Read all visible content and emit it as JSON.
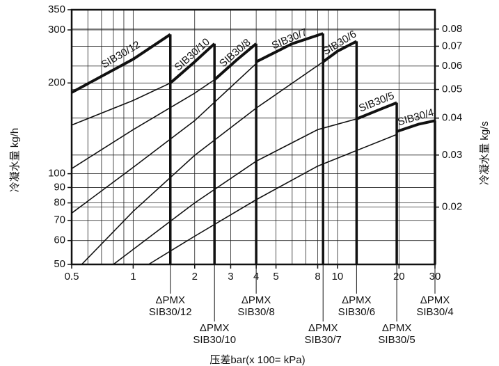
{
  "chart_data": {
    "type": "line",
    "ylabel": "冷凝水量 kg/h",
    "y2label": "冷凝水量 kg/s",
    "xlabel": "压差bar(x 100= kPa)",
    "xscale": "log",
    "yscale": "log",
    "grid": true,
    "xlim": [
      0.5,
      30
    ],
    "xticks": [
      0.5,
      1,
      2,
      3,
      4,
      5,
      8,
      10,
      20,
      30
    ],
    "xminor": [
      0.6,
      0.7,
      0.8,
      0.9,
      6,
      7,
      9
    ],
    "ylim": [
      50,
      350
    ],
    "yticks": [
      50,
      60,
      70,
      80,
      90,
      100,
      200,
      300,
      350
    ],
    "y2lim": [
      0.0128,
      0.093
    ],
    "y2ticks": [
      0.02,
      0.03,
      0.04,
      0.05,
      0.06,
      0.07,
      0.08
    ],
    "color": "#111111",
    "series": [
      {
        "name": "SIB30/12",
        "x": [],
        "values": [],
        "max_x": [
          0.5,
          1,
          1.52
        ],
        "max_values": [
          186,
          240,
          290
        ]
      },
      {
        "name": "SIB30/10",
        "x": [
          0.5,
          1,
          1.52
        ],
        "values": [
          145,
          175,
          200
        ],
        "max_x": [
          1.52,
          2,
          2.5
        ],
        "max_values": [
          200,
          235,
          270
        ]
      },
      {
        "name": "SIB30/8",
        "x": [
          0.5,
          1,
          2,
          2.5
        ],
        "values": [
          104,
          140,
          185,
          205
        ],
        "max_x": [
          2.5,
          3.2,
          4
        ],
        "max_values": [
          205,
          238,
          270
        ]
      },
      {
        "name": "SIB30/7",
        "x": [
          0.5,
          1,
          2,
          4
        ],
        "values": [
          74,
          105,
          150,
          232
        ],
        "max_x": [
          4,
          6,
          8.5
        ],
        "max_values": [
          235,
          270,
          292
        ]
      },
      {
        "name": "SIB30/6",
        "x": [
          0.56,
          1,
          2,
          4,
          8.5
        ],
        "values": [
          50,
          75,
          115,
          165,
          235
        ],
        "max_x": [
          8.5,
          10,
          12.4
        ],
        "max_values": [
          235,
          255,
          275
        ]
      },
      {
        "name": "SIB30/5",
        "x": [
          0.8,
          2,
          4,
          8,
          12.4
        ],
        "values": [
          50,
          80,
          110,
          140,
          152
        ],
        "max_x": [
          12.4,
          16,
          19.5
        ],
        "max_values": [
          152,
          163,
          172
        ]
      },
      {
        "name": "SIB30/4",
        "x": [
          1.19,
          2,
          4,
          8,
          19.5
        ],
        "values": [
          50,
          62,
          82,
          106,
          135
        ],
        "max_x": [
          19.5,
          25,
          30
        ],
        "max_values": [
          138,
          146,
          150
        ]
      }
    ],
    "annotations": [
      {
        "x": 1.52,
        "label": "ΔPMX",
        "trap": "SIB30/12"
      },
      {
        "x": 2.5,
        "label": "ΔPMX",
        "trap": "SIB30/10"
      },
      {
        "x": 4,
        "label": "ΔPMX",
        "trap": "SIB30/8"
      },
      {
        "x": 8.5,
        "label": "ΔPMX",
        "trap": "SIB30/7"
      },
      {
        "x": 12.4,
        "label": "ΔPMX",
        "trap": "SIB30/6"
      },
      {
        "x": 19.5,
        "label": "ΔPMX",
        "trap": "SIB30/5"
      },
      {
        "x": 30,
        "label": "ΔPMX",
        "trap": "SIB30/4"
      }
    ]
  }
}
